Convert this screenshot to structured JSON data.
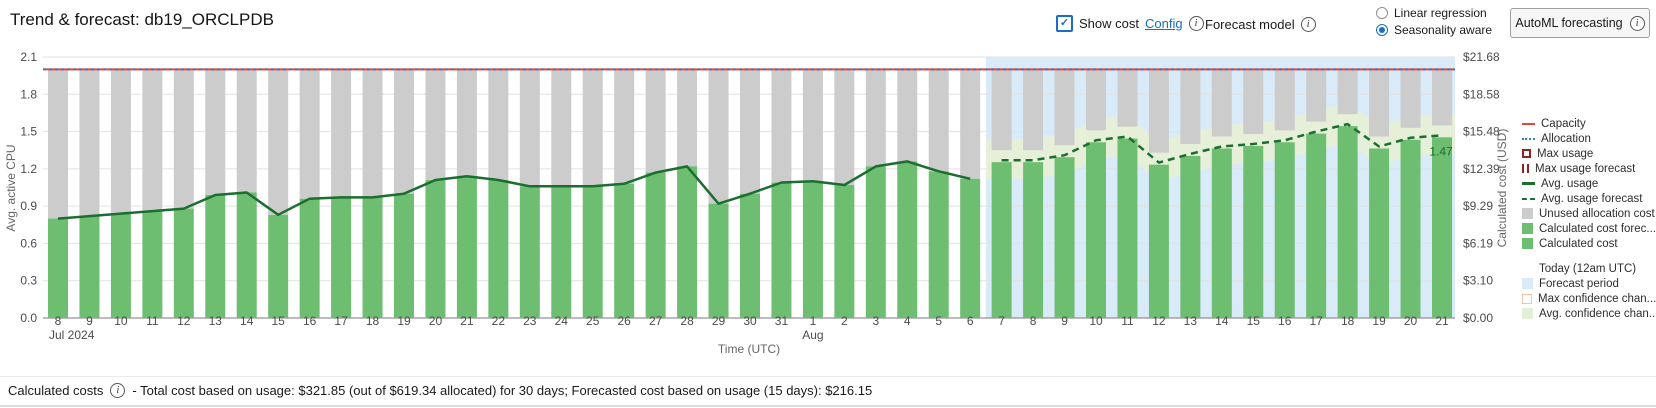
{
  "header": {
    "title": "Trend & forecast: db19_ORCLPDB",
    "show_cost_label": "Show cost",
    "config_label": "Config",
    "forecast_model_label": "Forecast model",
    "radio_options": [
      {
        "label": "Linear regression",
        "selected": false
      },
      {
        "label": "Seasonality aware",
        "selected": true
      }
    ],
    "automl_button_label": "AutoML forecasting"
  },
  "chart_data": {
    "type": "bar",
    "subtype": "cost bars with usage trend line and dashed forecast line",
    "x_label": "Time (UTC)",
    "y_left_label": "Avg. active CPU",
    "y_right_label": "Calculated cost (USD)",
    "ylim_left": [
      0,
      2.1
    ],
    "y_left_ticks": [
      0,
      0.3,
      0.6,
      0.9,
      1.2,
      1.5,
      1.8,
      2.1
    ],
    "y_right_tick_labels": [
      "$0.00",
      "$3.10",
      "$6.19",
      "$9.29",
      "$12.39",
      "$15.48",
      "$18.58",
      "$21.68"
    ],
    "categories": [
      "8",
      "9",
      "10",
      "11",
      "12",
      "13",
      "14",
      "15",
      "16",
      "17",
      "18",
      "19",
      "20",
      "21",
      "22",
      "23",
      "24",
      "25",
      "26",
      "27",
      "28",
      "29",
      "30",
      "31",
      "1",
      "2",
      "3",
      "4",
      "5",
      "6",
      "7",
      "8",
      "9",
      "10",
      "11",
      "12",
      "13",
      "14",
      "15",
      "16",
      "17",
      "18",
      "19",
      "20",
      "21"
    ],
    "month_markers": [
      {
        "index": 0,
        "label": "Jul 2024"
      },
      {
        "index": 24,
        "label": "Aug"
      }
    ],
    "series": [
      {
        "name": "Avg. usage",
        "role": "history",
        "values": [
          0.8,
          0.82,
          0.84,
          0.86,
          0.88,
          0.99,
          1.01,
          0.83,
          0.96,
          0.97,
          0.97,
          1.0,
          1.11,
          1.14,
          1.11,
          1.06,
          1.06,
          1.06,
          1.08,
          1.17,
          1.22,
          0.92,
          1.0,
          1.09,
          1.1,
          1.07,
          1.22,
          1.26,
          1.18,
          1.12
        ]
      },
      {
        "name": "Avg. usage forecast",
        "role": "forecast",
        "values": [
          1.27,
          1.27,
          1.31,
          1.43,
          1.46,
          1.25,
          1.32,
          1.38,
          1.4,
          1.43,
          1.5,
          1.56,
          1.38,
          1.45,
          1.47
        ]
      }
    ],
    "forecast_start_index": 30,
    "allocation": 2.0,
    "capacity": 2.0,
    "confidence_delta_up": 0.17,
    "confidence_delta_down": 0.15,
    "last_point_label": "1.47",
    "grid": true,
    "legend_position": "right",
    "colors": {
      "bar_green": "#6dbe71",
      "bar_gray": "#cccccc",
      "line_green": "#1b6e2f",
      "capacity_red": "#e0483c",
      "allocation_blue": "#2e7cd6",
      "forecast_bg": "#d9eaf9",
      "confidence_band": "#e6f0d8",
      "maroon": "#8e2323",
      "axis_text": "#4c4c4c",
      "axis_label": "#666666"
    }
  },
  "legend": {
    "items": [
      {
        "label": "Capacity",
        "swatch": "line",
        "color": "#e0483c"
      },
      {
        "label": "Allocation",
        "swatch": "dotted",
        "color": "#2e7cd6"
      },
      {
        "label": "Max usage",
        "swatch": "open-square",
        "color": "#8e2323"
      },
      {
        "label": "Max usage forecast",
        "swatch": "ticks",
        "color": "#8e2323"
      },
      {
        "label": "Avg. usage",
        "swatch": "line-thick",
        "color": "#1b6e2f"
      },
      {
        "label": "Avg. usage forecast",
        "swatch": "dashed",
        "color": "#1b6e2f"
      },
      {
        "label": "Unused allocation cost",
        "swatch": "square",
        "color": "#cccccc"
      },
      {
        "label": "Calculated cost forec...",
        "swatch": "square",
        "color": "#6dbe71"
      },
      {
        "label": "Calculated cost",
        "swatch": "square",
        "color": "#6dbe71"
      },
      {
        "label": "Today (12am UTC)",
        "swatch": "none",
        "color": "",
        "gap": true
      },
      {
        "label": "Forecast period",
        "swatch": "square",
        "color": "#d9eaf9"
      },
      {
        "label": "Max confidence chan...",
        "swatch": "square-border",
        "color": "#f0c4a4"
      },
      {
        "label": "Avg. confidence chan...",
        "swatch": "square",
        "color": "#e3efd7"
      }
    ]
  },
  "footer": {
    "label": "Calculated costs",
    "text": "- Total cost based on usage: $321.85 (out of $619.34 allocated) for 30 days; Forecasted cost based on usage (15 days): $216.15"
  }
}
